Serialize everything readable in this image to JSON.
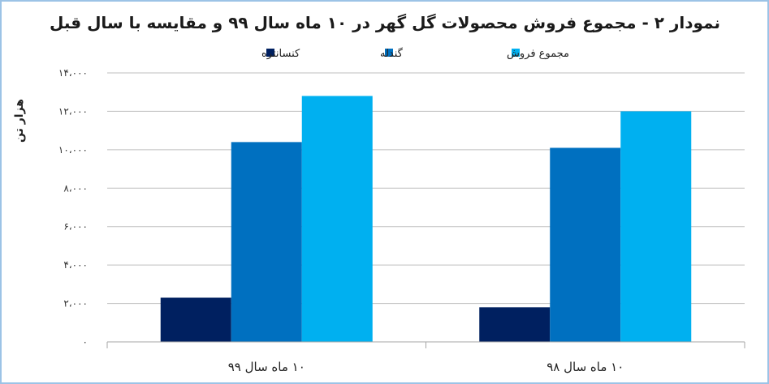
{
  "chart_data": {
    "type": "bar",
    "title": "نمودار ۲ - مجموع فروش محصولات گل گهر در ۱۰ ماه سال ۹۹ و مقایسه با سال قبل",
    "ylabel": "هزار تن",
    "xlabel": "",
    "categories": [
      "۱۰ ماه سال ۹۹",
      "۱۰ ماه سال ۹۸"
    ],
    "series": [
      {
        "name": "کنسانتره",
        "color": "#002060",
        "values": [
          2300,
          1800
        ]
      },
      {
        "name": "گندله",
        "color": "#0070c0",
        "values": [
          10400,
          10100
        ]
      },
      {
        "name": "مجموع فروش",
        "color": "#00b0f0",
        "values": [
          12800,
          12000
        ]
      }
    ],
    "ylim": [
      0,
      14000
    ],
    "yticks": [
      0,
      2000,
      4000,
      6000,
      8000,
      10000,
      12000,
      14000
    ],
    "ytick_labels": [
      "۰",
      "۲،۰۰۰",
      "۴،۰۰۰",
      "۶،۰۰۰",
      "۸،۰۰۰",
      "۱۰،۰۰۰",
      "۱۲،۰۰۰",
      "۱۴،۰۰۰"
    ],
    "grid": true,
    "legend_position": "top-center"
  }
}
